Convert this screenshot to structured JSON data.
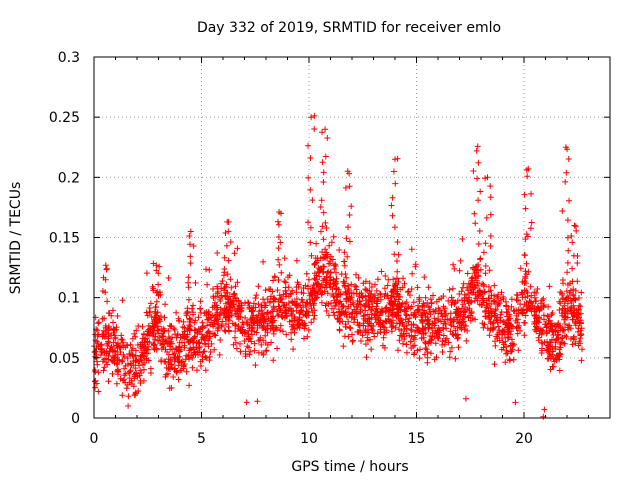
{
  "chart_data": {
    "type": "scatter",
    "title": "Day 332 of 2019, SRMTID for receiver emlo",
    "xlabel": "GPS time / hours",
    "ylabel": "SRMTID / TECUs",
    "xlim": [
      0,
      24
    ],
    "ylim": [
      0,
      0.3
    ],
    "grid": true,
    "x_ticks": [
      0,
      5,
      10,
      15,
      20
    ],
    "x_tick_labels": [
      "0",
      "5",
      "10",
      "15",
      "20"
    ],
    "y_ticks": [
      0,
      0.05,
      0.1,
      0.15,
      0.2,
      0.25,
      0.3
    ],
    "y_tick_labels": [
      "0",
      "0.05",
      "0.1",
      "0.15",
      "0.2",
      "0.25",
      "0.3"
    ],
    "marker": "+",
    "color": "#ff0000",
    "series": [
      {
        "name": "SRMTID",
        "profile": [
          {
            "x": 0.0,
            "y": 0.05
          },
          {
            "x": 0.5,
            "y": 0.06
          },
          {
            "x": 1.0,
            "y": 0.055
          },
          {
            "x": 1.5,
            "y": 0.042
          },
          {
            "x": 2.0,
            "y": 0.04
          },
          {
            "x": 2.5,
            "y": 0.065
          },
          {
            "x": 3.0,
            "y": 0.075
          },
          {
            "x": 3.5,
            "y": 0.052
          },
          {
            "x": 4.0,
            "y": 0.055
          },
          {
            "x": 4.5,
            "y": 0.065
          },
          {
            "x": 5.0,
            "y": 0.06
          },
          {
            "x": 5.5,
            "y": 0.08
          },
          {
            "x": 6.0,
            "y": 0.095
          },
          {
            "x": 6.5,
            "y": 0.09
          },
          {
            "x": 7.0,
            "y": 0.075
          },
          {
            "x": 7.5,
            "y": 0.078
          },
          {
            "x": 8.0,
            "y": 0.082
          },
          {
            "x": 8.5,
            "y": 0.085
          },
          {
            "x": 9.0,
            "y": 0.09
          },
          {
            "x": 9.5,
            "y": 0.085
          },
          {
            "x": 10.0,
            "y": 0.09
          },
          {
            "x": 10.5,
            "y": 0.12
          },
          {
            "x": 11.0,
            "y": 0.115
          },
          {
            "x": 11.5,
            "y": 0.095
          },
          {
            "x": 12.0,
            "y": 0.09
          },
          {
            "x": 12.5,
            "y": 0.085
          },
          {
            "x": 13.0,
            "y": 0.09
          },
          {
            "x": 13.5,
            "y": 0.085
          },
          {
            "x": 14.0,
            "y": 0.095
          },
          {
            "x": 14.5,
            "y": 0.08
          },
          {
            "x": 15.0,
            "y": 0.08
          },
          {
            "x": 15.5,
            "y": 0.075
          },
          {
            "x": 16.0,
            "y": 0.075
          },
          {
            "x": 16.5,
            "y": 0.078
          },
          {
            "x": 17.0,
            "y": 0.085
          },
          {
            "x": 17.5,
            "y": 0.1
          },
          {
            "x": 18.0,
            "y": 0.11
          },
          {
            "x": 18.5,
            "y": 0.08
          },
          {
            "x": 19.0,
            "y": 0.075
          },
          {
            "x": 19.5,
            "y": 0.07
          },
          {
            "x": 20.0,
            "y": 0.11
          },
          {
            "x": 20.5,
            "y": 0.09
          },
          {
            "x": 21.0,
            "y": 0.07
          },
          {
            "x": 21.5,
            "y": 0.06
          },
          {
            "x": 22.0,
            "y": 0.09
          },
          {
            "x": 22.5,
            "y": 0.08
          },
          {
            "x": 22.7,
            "y": 0.075
          }
        ],
        "peaks": [
          {
            "x": 0.55,
            "y": 0.127
          },
          {
            "x": 2.9,
            "y": 0.127
          },
          {
            "x": 4.5,
            "y": 0.155
          },
          {
            "x": 6.2,
            "y": 0.163
          },
          {
            "x": 8.7,
            "y": 0.17
          },
          {
            "x": 10.1,
            "y": 0.25
          },
          {
            "x": 10.75,
            "y": 0.24
          },
          {
            "x": 11.8,
            "y": 0.205
          },
          {
            "x": 14.0,
            "y": 0.215
          },
          {
            "x": 17.8,
            "y": 0.222
          },
          {
            "x": 18.3,
            "y": 0.2
          },
          {
            "x": 20.2,
            "y": 0.207
          },
          {
            "x": 21.95,
            "y": 0.225
          },
          {
            "x": 22.35,
            "y": 0.16
          }
        ],
        "lows": [
          {
            "x": 0.2,
            "y": 0.022
          },
          {
            "x": 1.6,
            "y": 0.018
          },
          {
            "x": 3.6,
            "y": 0.025
          },
          {
            "x": 7.1,
            "y": 0.013
          },
          {
            "x": 7.6,
            "y": 0.014
          },
          {
            "x": 19.6,
            "y": 0.013
          },
          {
            "x": 20.9,
            "y": 0.001
          },
          {
            "x": 20.95,
            "y": 0.007
          },
          {
            "x": 17.3,
            "y": 0.016
          }
        ],
        "x_range": [
          0,
          22.7
        ],
        "num_points": 2400
      }
    ]
  }
}
